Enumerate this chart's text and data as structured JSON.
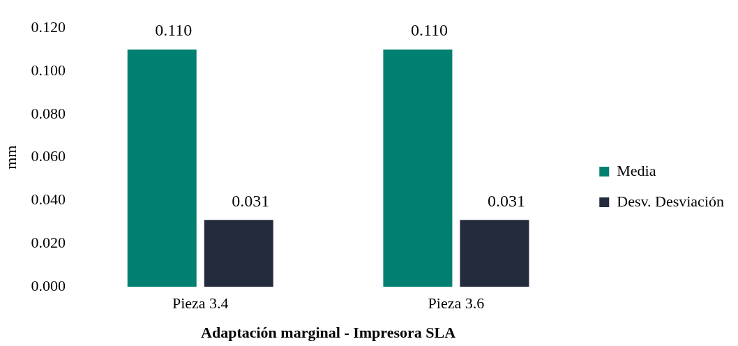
{
  "chart_data": {
    "type": "bar",
    "xlabel": "Adaptación marginal - Impresora SLA",
    "ylabel": "mm",
    "categories": [
      "Pieza 3.4",
      "Pieza 3.6"
    ],
    "series": [
      {
        "name": "Media",
        "color": "#008070",
        "values": [
          0.11,
          0.11
        ],
        "value_labels": [
          "0.110",
          "0.110"
        ]
      },
      {
        "name": "Desv. Desviación",
        "color": "#232b3d",
        "values": [
          0.031,
          0.031
        ],
        "value_labels": [
          "0.031",
          "0.031"
        ]
      }
    ],
    "ylim": [
      0,
      0.12
    ],
    "yticks": [
      {
        "value": 0,
        "label": "0.000"
      },
      {
        "value": 0.02,
        "label": "0.020"
      },
      {
        "value": 0.04,
        "label": "0.040"
      },
      {
        "value": 0.06,
        "label": "0.060"
      },
      {
        "value": 0.08,
        "label": "0.080"
      },
      {
        "value": 0.1,
        "label": "0.100"
      },
      {
        "value": 0.12,
        "label": "0.120"
      }
    ],
    "grid": false,
    "legend": "right"
  }
}
